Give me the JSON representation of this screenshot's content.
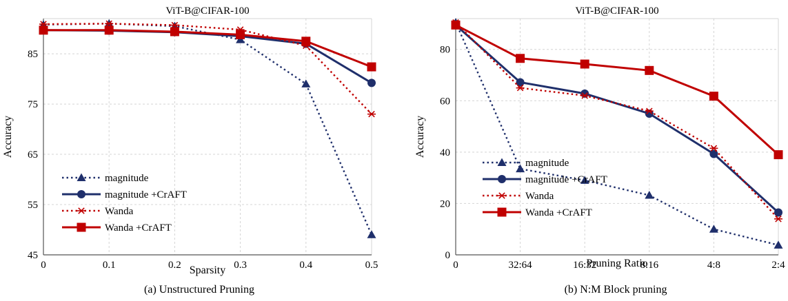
{
  "chart_data": [
    {
      "type": "line",
      "title": "ViT-B@CIFAR-100",
      "caption": "(a) Unstructured Pruning",
      "xlabel": "Sparsity",
      "ylabel": "Accuracy",
      "categories": [
        "0",
        "0.1",
        "0.2",
        "0.3",
        "0.4",
        "0.5"
      ],
      "ylim": [
        45,
        92
      ],
      "yticks": [
        45,
        55,
        65,
        75,
        85
      ],
      "grid": true,
      "legend_position": "bottom-left",
      "series": [
        {
          "name": "magnitude",
          "values": [
            90.8,
            91.0,
            90.5,
            87.8,
            79.0,
            49.0
          ],
          "color": "#1f2f6b",
          "dash": "dotted",
          "marker": "triangle"
        },
        {
          "name": "magnitude +CrAFT",
          "values": [
            89.7,
            89.6,
            89.3,
            88.5,
            87.0,
            79.2
          ],
          "color": "#1f2f6b",
          "dash": "solid",
          "marker": "circle"
        },
        {
          "name": "Wanda",
          "values": [
            90.9,
            91.0,
            90.7,
            89.8,
            86.6,
            73.0
          ],
          "color": "#c00000",
          "dash": "dotted",
          "marker": "asterisk"
        },
        {
          "name": "Wanda +CrAFT",
          "values": [
            89.7,
            89.7,
            89.4,
            88.8,
            87.5,
            82.4
          ],
          "color": "#c00000",
          "dash": "solid",
          "marker": "square"
        }
      ]
    },
    {
      "type": "line",
      "title": "ViT-B@CIFAR-100",
      "caption": "(b) N:M Block pruning",
      "xlabel": "Pruning Ratio",
      "ylabel": "Accuracy",
      "categories": [
        "0",
        "32:64",
        "16:32",
        "8:16",
        "4:8",
        "2:4"
      ],
      "ylim": [
        0,
        92
      ],
      "yticks": [
        0,
        20,
        40,
        60,
        80
      ],
      "grid": true,
      "legend_position": "bottom-left",
      "series": [
        {
          "name": "magnitude",
          "values": [
            90.5,
            33.5,
            29.0,
            23.2,
            10.0,
            3.8
          ],
          "color": "#1f2f6b",
          "dash": "dotted",
          "marker": "triangle"
        },
        {
          "name": "magnitude +CrAFT",
          "values": [
            89.5,
            67.2,
            62.8,
            55.0,
            39.3,
            16.5
          ],
          "color": "#1f2f6b",
          "dash": "solid",
          "marker": "circle"
        },
        {
          "name": "Wanda",
          "values": [
            90.5,
            65.0,
            62.0,
            56.0,
            41.5,
            14.0
          ],
          "color": "#c00000",
          "dash": "dotted",
          "marker": "asterisk"
        },
        {
          "name": "Wanda +CrAFT",
          "values": [
            89.5,
            76.5,
            74.3,
            71.8,
            61.8,
            39.0
          ],
          "color": "#c00000",
          "dash": "solid",
          "marker": "square"
        }
      ]
    }
  ]
}
